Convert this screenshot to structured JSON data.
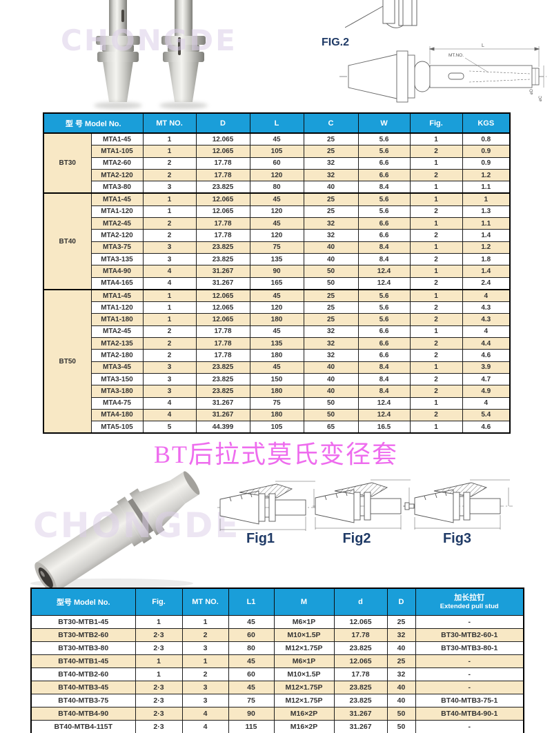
{
  "watermark": "CHONGDE",
  "title": "BT后拉式莫氏变径套",
  "labels": {
    "fig2_drawing": "FIG.2"
  },
  "drawing_annotations": {
    "length": "L",
    "mt_no": "MT.NO.",
    "dia_d": "øD",
    "dia_c": "øC"
  },
  "colors": {
    "header_blue": "#1a9ed9",
    "row_cream": "#f8e8c5",
    "title_pink": "#ee6cee",
    "fig_label_navy": "#1f3a66"
  },
  "table1": {
    "headers": [
      "型 号 Model No.",
      "MT NO.",
      "D",
      "L",
      "C",
      "W",
      "Fig.",
      "KGS"
    ],
    "groups": [
      {
        "name": "BT30",
        "rows": [
          [
            "MTA1-45",
            "1",
            "12.065",
            "45",
            "25",
            "5.6",
            "1",
            "0.8"
          ],
          [
            "MTA1-105",
            "1",
            "12.065",
            "105",
            "25",
            "5.6",
            "2",
            "0.9"
          ],
          [
            "MTA2-60",
            "2",
            "17.78",
            "60",
            "32",
            "6.6",
            "1",
            "0.9"
          ],
          [
            "MTA2-120",
            "2",
            "17.78",
            "120",
            "32",
            "6.6",
            "2",
            "1.2"
          ],
          [
            "MTA3-80",
            "3",
            "23.825",
            "80",
            "40",
            "8.4",
            "1",
            "1.1"
          ]
        ]
      },
      {
        "name": "BT40",
        "rows": [
          [
            "MTA1-45",
            "1",
            "12.065",
            "45",
            "25",
            "5.6",
            "1",
            "1"
          ],
          [
            "MTA1-120",
            "1",
            "12.065",
            "120",
            "25",
            "5.6",
            "2",
            "1.3"
          ],
          [
            "MTA2-45",
            "2",
            "17.78",
            "45",
            "32",
            "6.6",
            "1",
            "1.1"
          ],
          [
            "MTA2-120",
            "2",
            "17.78",
            "120",
            "32",
            "6.6",
            "2",
            "1.4"
          ],
          [
            "MTA3-75",
            "3",
            "23.825",
            "75",
            "40",
            "8.4",
            "1",
            "1.2"
          ],
          [
            "MTA3-135",
            "3",
            "23.825",
            "135",
            "40",
            "8.4",
            "2",
            "1.8"
          ],
          [
            "MTA4-90",
            "4",
            "31.267",
            "90",
            "50",
            "12.4",
            "1",
            "1.4"
          ],
          [
            "MTA4-165",
            "4",
            "31.267",
            "165",
            "50",
            "12.4",
            "2",
            "2.4"
          ]
        ]
      },
      {
        "name": "BT50",
        "rows": [
          [
            "MTA1-45",
            "1",
            "12.065",
            "45",
            "25",
            "5.6",
            "1",
            "4"
          ],
          [
            "MTA1-120",
            "1",
            "12.065",
            "120",
            "25",
            "5.6",
            "2",
            "4.3"
          ],
          [
            "MTA1-180",
            "1",
            "12.065",
            "180",
            "25",
            "5.6",
            "2",
            "4.3"
          ],
          [
            "MTA2-45",
            "2",
            "17.78",
            "45",
            "32",
            "6.6",
            "1",
            "4"
          ],
          [
            "MTA2-135",
            "2",
            "17.78",
            "135",
            "32",
            "6.6",
            "2",
            "4.4"
          ],
          [
            "MTA2-180",
            "2",
            "17.78",
            "180",
            "32",
            "6.6",
            "2",
            "4.6"
          ],
          [
            "MTA3-45",
            "3",
            "23.825",
            "45",
            "40",
            "8.4",
            "1",
            "3.9"
          ],
          [
            "MTA3-150",
            "3",
            "23.825",
            "150",
            "40",
            "8.4",
            "2",
            "4.7"
          ],
          [
            "MTA3-180",
            "3",
            "23.825",
            "180",
            "40",
            "8.4",
            "2",
            "4.9"
          ],
          [
            "MTA4-75",
            "4",
            "31.267",
            "75",
            "50",
            "12.4",
            "1",
            "4"
          ],
          [
            "MTA4-180",
            "4",
            "31.267",
            "180",
            "50",
            "12.4",
            "2",
            "5.4"
          ],
          [
            "MTA5-105",
            "5",
            "44.399",
            "105",
            "65",
            "16.5",
            "1",
            "4.6"
          ]
        ]
      }
    ]
  },
  "section2": {
    "fig_labels": [
      "Fig1",
      "Fig2",
      "Fig3"
    ]
  },
  "table2": {
    "headers": [
      "型号 Model No.",
      "Fig.",
      "MT NO.",
      "L1",
      "M",
      "d",
      "D"
    ],
    "last_header_zh": "加长拉钉",
    "last_header_en": "Extended pull stud",
    "rows": [
      [
        "BT30-MTB1-45",
        "1",
        "1",
        "45",
        "M6×1P",
        "12.065",
        "25",
        "-"
      ],
      [
        "BT30-MTB2-60",
        "2·3",
        "2",
        "60",
        "M10×1.5P",
        "17.78",
        "32",
        "BT30-MTB2-60-1"
      ],
      [
        "BT30-MTB3-80",
        "2·3",
        "3",
        "80",
        "M12×1.75P",
        "23.825",
        "40",
        "BT30-MTB3-80-1"
      ],
      [
        "BT40-MTB1-45",
        "1",
        "1",
        "45",
        "M6×1P",
        "12.065",
        "25",
        "-"
      ],
      [
        "BT40-MTB2-60",
        "1",
        "2",
        "60",
        "M10×1.5P",
        "17.78",
        "32",
        "-"
      ],
      [
        "BT40-MTB3-45",
        "2·3",
        "3",
        "45",
        "M12×1.75P",
        "23.825",
        "40",
        "-"
      ],
      [
        "BT40-MTB3-75",
        "2·3",
        "3",
        "75",
        "M12×1.75P",
        "23.825",
        "40",
        "BT40-MTB3-75-1"
      ],
      [
        "BT40-MTB4-90",
        "2·3",
        "4",
        "90",
        "M16×2P",
        "31.267",
        "50",
        "BT40-MTB4-90-1"
      ],
      [
        "BT40-MTB4-115T",
        "2·3",
        "4",
        "115",
        "M16×2P",
        "31.267",
        "50",
        "-"
      ]
    ]
  }
}
